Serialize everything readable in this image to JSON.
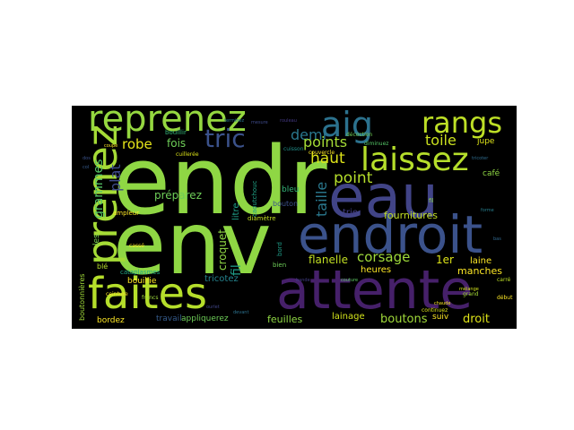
{
  "word_cloud": {
    "background": "#000000",
    "palette": "viridis",
    "words": [
      {
        "text": "endr",
        "color": "#8fd744"
      },
      {
        "text": "env",
        "color": "#8fd744"
      },
      {
        "text": "eau",
        "color": "#414487"
      },
      {
        "text": "endroit",
        "color": "#3b528b"
      },
      {
        "text": "attente",
        "color": "#46206a"
      },
      {
        "text": "faites",
        "color": "#b5de2b"
      },
      {
        "text": "prenez",
        "color": "#a5db36"
      },
      {
        "text": "reprenez",
        "color": "#95d840"
      },
      {
        "text": "laissez",
        "color": "#b5de2b"
      },
      {
        "text": "aig",
        "color": "#2c728e"
      },
      {
        "text": "rangs",
        "color": "#bddf26"
      },
      {
        "text": "tric",
        "color": "#3b528b"
      },
      {
        "text": "demi",
        "color": "#2a788e"
      },
      {
        "text": "points",
        "color": "#a5db36"
      },
      {
        "text": "toile",
        "color": "#cae11f"
      },
      {
        "text": "robe",
        "color": "#e5e419"
      },
      {
        "text": "fois",
        "color": "#6ece58"
      },
      {
        "text": "plat",
        "color": "#3e4a89"
      },
      {
        "text": "grammes",
        "color": "#55c667"
      },
      {
        "text": "haut",
        "color": "#dde318"
      },
      {
        "text": "point",
        "color": "#b5de2b"
      },
      {
        "text": "taille",
        "color": "#2a788e"
      },
      {
        "text": "corsage",
        "color": "#9fda3a"
      },
      {
        "text": "1er",
        "color": "#dde318"
      },
      {
        "text": "laine",
        "color": "#fde725"
      },
      {
        "text": "flanelle",
        "color": "#c2df23"
      },
      {
        "text": "heures",
        "color": "#fde725"
      },
      {
        "text": "manches",
        "color": "#fde725"
      },
      {
        "text": "boutons",
        "color": "#a0da39"
      },
      {
        "text": "droit",
        "color": "#dde318"
      },
      {
        "text": "suiv",
        "color": "#fde725"
      },
      {
        "text": "lainage",
        "color": "#d2e21b"
      },
      {
        "text": "feuilles",
        "color": "#8fd744"
      },
      {
        "text": "préparez",
        "color": "#6ece58"
      },
      {
        "text": "croquet",
        "color": "#8fd744"
      },
      {
        "text": "fil",
        "color": "#1f9e89"
      },
      {
        "text": "fournitures",
        "color": "#c2df23"
      },
      {
        "text": "tricotez",
        "color": "#25838e"
      },
      {
        "text": "bouillie",
        "color": "#fde725"
      },
      {
        "text": "travail",
        "color": "#365c8d"
      },
      {
        "text": "appliquerez",
        "color": "#6ece58"
      },
      {
        "text": "bordez",
        "color": "#fde725"
      },
      {
        "text": "litre",
        "color": "#1f9e89"
      },
      {
        "text": "bleu",
        "color": "#35b779"
      },
      {
        "text": "bouton",
        "color": "#3b528b"
      },
      {
        "text": "jupe",
        "color": "#dde318"
      },
      {
        "text": "café",
        "color": "#8fd744"
      },
      {
        "text": "trie",
        "color": "#433e85"
      },
      {
        "text": "cataplasmes",
        "color": "#22a884"
      },
      {
        "text": "bouillir",
        "color": "#35b779"
      },
      {
        "text": "ampleur",
        "color": "#fde725"
      },
      {
        "text": "diamètre",
        "color": "#c2df23"
      },
      {
        "text": "caoutchouc",
        "color": "#20a386"
      },
      {
        "text": "bord",
        "color": "#1f9e89"
      },
      {
        "text": "bien",
        "color": "#6ece58"
      },
      {
        "text": "les",
        "color": "#7ad151"
      },
      {
        "text": "blé",
        "color": "#b5de2b"
      },
      {
        "text": "boutonnières",
        "color": "#a0da39"
      },
      {
        "text": "continuez",
        "color": "#dde318"
      },
      {
        "text": "cuillerée",
        "color": "#dde318"
      },
      {
        "text": "diminuez",
        "color": "#55c667"
      },
      {
        "text": "décoction",
        "color": "#6ece58"
      },
      {
        "text": "couvercle",
        "color": "#fde725"
      },
      {
        "text": "ceinture",
        "color": "#fde725"
      },
      {
        "text": "cuisson",
        "color": "#21918c"
      },
      {
        "text": "carré",
        "color": "#bddf26"
      },
      {
        "text": "grand",
        "color": "#a5db36"
      },
      {
        "text": "mélange",
        "color": "#d2e21b"
      },
      {
        "text": "début",
        "color": "#fde725"
      },
      {
        "text": "chaude",
        "color": "#fde725"
      },
      {
        "text": "francs",
        "color": "#9fda3a"
      },
      {
        "text": "fil",
        "color": "#8fd744"
      },
      {
        "text": "cassé",
        "color": "#fde725"
      },
      {
        "text": "mesure",
        "color": "#3e4a89"
      },
      {
        "text": "coupe",
        "color": "#fde725"
      },
      {
        "text": "terminez",
        "color": "#2a788e"
      },
      {
        "text": "rouleau",
        "color": "#443983"
      },
      {
        "text": "forme",
        "color": "#277f8e"
      },
      {
        "text": "tricoter",
        "color": "#2f6c8e"
      },
      {
        "text": "couture",
        "color": "#5ec962"
      },
      {
        "text": "bande",
        "color": "#433e85"
      },
      {
        "text": "ourlet",
        "color": "#404688"
      },
      {
        "text": "devant",
        "color": "#2c728e"
      },
      {
        "text": "dos",
        "color": "#3b528b"
      },
      {
        "text": "col",
        "color": "#365c8d"
      },
      {
        "text": "bas",
        "color": "#31688e"
      }
    ]
  }
}
